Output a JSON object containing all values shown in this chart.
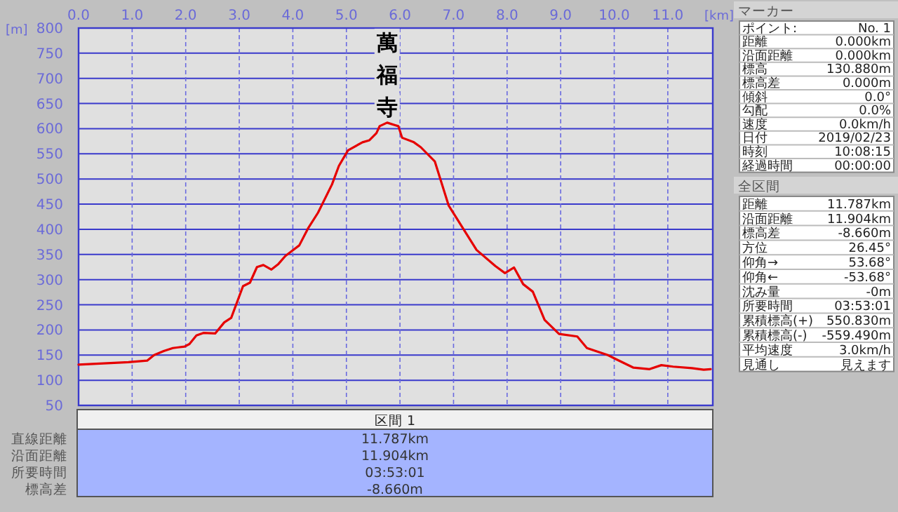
{
  "chart_data": {
    "type": "line",
    "xlabel": "[km]",
    "ylabel": "[m]",
    "x": [
      0,
      0.93,
      1.28,
      1.41,
      1.59,
      1.76,
      1.98,
      2.07,
      2.2,
      2.33,
      2.55,
      2.72,
      2.85,
      3.07,
      3.2,
      3.33,
      3.45,
      3.6,
      3.73,
      3.86,
      4.01,
      4.12,
      4.28,
      4.47,
      4.73,
      4.86,
      5.03,
      5.3,
      5.43,
      5.56,
      5.62,
      5.76,
      5.91,
      5.97,
      6.04,
      6.26,
      6.39,
      6.65,
      6.91,
      7.43,
      7.78,
      7.96,
      8.13,
      8.3,
      8.48,
      8.7,
      8.97,
      9.31,
      9.49,
      9.88,
      10.05,
      10.36,
      10.66,
      10.88,
      11.1,
      11.45,
      11.67,
      11.8
    ],
    "series": [
      {
        "color": "#e60000",
        "values": [
          131,
          136,
          139,
          150,
          158,
          164,
          167,
          172,
          189,
          194,
          193,
          215,
          224,
          287,
          294,
          325,
          329,
          320,
          331,
          347,
          359,
          368,
          401,
          433,
          489,
          526,
          557,
          573,
          577,
          591,
          605,
          612,
          607,
          605,
          582,
          573,
          563,
          535,
          447,
          359,
          327,
          313,
          324,
          291,
          276,
          220,
          192,
          187,
          164,
          150,
          141,
          125,
          122,
          130,
          127,
          124,
          121,
          122
        ]
      }
    ],
    "xlim": [
      0,
      11.84
    ],
    "ylim": [
      50,
      800
    ],
    "xticks": [
      {
        "value": 0,
        "label": "0.0"
      },
      {
        "value": 1,
        "label": "1.0"
      },
      {
        "value": 2,
        "label": "2.0"
      },
      {
        "value": 3,
        "label": "3.0"
      },
      {
        "value": 4,
        "label": "4.0"
      },
      {
        "value": 5,
        "label": "5.0"
      },
      {
        "value": 6,
        "label": "6.0"
      },
      {
        "value": 7,
        "label": "7.0"
      },
      {
        "value": 8,
        "label": "8.0"
      },
      {
        "value": 9,
        "label": "9.0"
      },
      {
        "value": 10,
        "label": "10.0"
      },
      {
        "value": 11,
        "label": "11.0"
      }
    ],
    "yticks": [
      50,
      100,
      150,
      200,
      250,
      300,
      350,
      400,
      450,
      500,
      550,
      600,
      650,
      700,
      750,
      800
    ],
    "grid": true,
    "marker": "none",
    "line_style": "solid",
    "annotations": [
      {
        "text": "萬福寺",
        "x": 5.76,
        "y": 612
      },
      "マーカー",
      "ポイント:",
      "No. 1",
      "距離",
      "0.000km",
      "沿面距離",
      "0.000km",
      "標高",
      "130.880m",
      "標高差",
      "0.000m",
      "傾斜",
      "0.0°",
      "勾配",
      "0.0%",
      "速度",
      "0.0km/h",
      "日付",
      "2019/02/23",
      "時刻",
      "10:08:15",
      "経過時間",
      "00:00:00",
      "全区間",
      "距離",
      "11.787km",
      "沿面距離",
      "11.904km",
      "標高差",
      "-8.660m",
      "方位",
      "26.45°",
      "仰角→",
      "53.68°",
      "仰角←",
      "-53.68°",
      "沈み量",
      "-0m",
      "所要時間",
      "03:53:01",
      "累積標高(+)",
      "550.830m",
      "累積標高(-)",
      "-559.490m",
      "平均速度",
      "3.0km/h",
      "見通し",
      "見えます",
      "区間 1",
      "直線距離",
      "11.787km",
      "沿面距離",
      "11.904km",
      "所要時間",
      "03:53:01",
      "標高差",
      "-8.660m"
    ]
  }
}
